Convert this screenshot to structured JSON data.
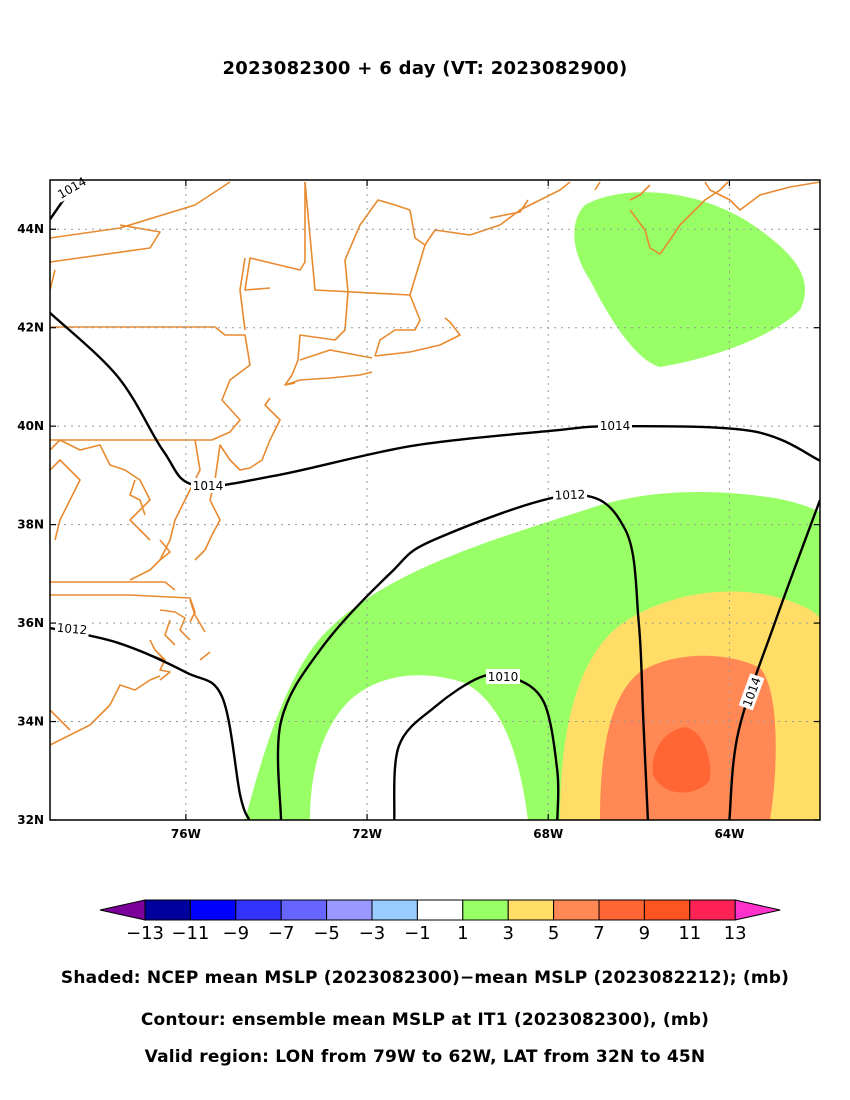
{
  "title": "2023082300 + 6 day (VT: 2023082900)",
  "captions": {
    "shaded": "Shaded: NCEP mean MSLP (2023082300)−mean MSLP (2023082212); (mb)",
    "contour": "Contour: ensemble mean MSLP at IT1 (2023082300), (mb)",
    "region": "Valid region: LON from 79W to 62W, LAT from 32N to 45N"
  },
  "chart_data": {
    "type": "heatmap",
    "projection": "lat-lon map",
    "x_range_deg_east": [
      -79,
      -62
    ],
    "y_range_deg_north": [
      32,
      45
    ],
    "x_ticks": [
      {
        "value": -76,
        "label": "76W"
      },
      {
        "value": -72,
        "label": "72W"
      },
      {
        "value": -68,
        "label": "68W"
      },
      {
        "value": -64,
        "label": "64W"
      }
    ],
    "y_ticks": [
      {
        "value": 32,
        "label": "32N"
      },
      {
        "value": 34,
        "label": "34N"
      },
      {
        "value": 36,
        "label": "36N"
      },
      {
        "value": 38,
        "label": "38N"
      },
      {
        "value": 40,
        "label": "40N"
      },
      {
        "value": 42,
        "label": "42N"
      },
      {
        "value": 44,
        "label": "44N"
      }
    ],
    "grid": true,
    "coastline_color": "#e88a30",
    "colorbar": {
      "levels": [
        "−13",
        "−11",
        "−9",
        "−7",
        "−5",
        "−3",
        "−1",
        "1",
        "3",
        "5",
        "7",
        "9",
        "11",
        "13"
      ],
      "colors": [
        "#7a0099",
        "#00009e",
        "#0000ff",
        "#3333ff",
        "#6666ff",
        "#9999ff",
        "#99ccff",
        "#ffffff",
        "#99ff66",
        "#ffdd66",
        "#ff8855",
        "#ff6633",
        "#ff5522",
        "#ff2255",
        "#ff33cc"
      ]
    },
    "shaded_regions": [
      {
        "value_range": "1 to 3",
        "color": "#99ff66",
        "area": "northeast, around 42-45N 63-66W"
      },
      {
        "value_range": "1 to 3",
        "color": "#99ff66",
        "area": "arc from 32N 74W to 38N 63W"
      },
      {
        "value_range": "3 to 5",
        "color": "#ffdd66",
        "area": "32-37N 62-67W"
      },
      {
        "value_range": "5 to 7",
        "color": "#ff8855",
        "area": "32-35.5N 63-66W"
      },
      {
        "value_range": "7 to 9",
        "color": "#ff6633",
        "area": "around 33N 65W"
      }
    ],
    "contours": [
      {
        "level": 1014,
        "label": "1014",
        "path": [
          [
            -79,
            42.3
          ],
          [
            -77.5,
            41
          ],
          [
            -76.5,
            39.5
          ],
          [
            -75.8,
            38.8
          ],
          [
            -74,
            39
          ],
          [
            -71,
            39.6
          ],
          [
            -68,
            39.9
          ],
          [
            -66.5,
            40
          ],
          [
            -63.5,
            39.9
          ],
          [
            -62,
            39.3
          ]
        ]
      },
      {
        "level": 1014,
        "label": "1014",
        "path": [
          [
            -79,
            44.2
          ],
          [
            -78.4,
            45
          ]
        ]
      },
      {
        "level": 1014,
        "label": "1014",
        "path": [
          [
            -64,
            32
          ],
          [
            -63.8,
            33.8
          ],
          [
            -63,
            36
          ],
          [
            -62,
            38.5
          ]
        ]
      },
      {
        "level": 1012,
        "label": "1012",
        "path": [
          [
            -79,
            35.9
          ],
          [
            -77.5,
            35.6
          ],
          [
            -76,
            35
          ],
          [
            -75.2,
            34.5
          ],
          [
            -74.8,
            32.5
          ],
          [
            -74.6,
            32
          ]
        ]
      },
      {
        "level": 1012,
        "label": "1012",
        "path": [
          [
            -73.9,
            32
          ],
          [
            -73.9,
            34
          ],
          [
            -73,
            35.5
          ],
          [
            -71.5,
            37
          ],
          [
            -70.5,
            37.7
          ],
          [
            -67.5,
            38.6
          ],
          [
            -66.3,
            37.9
          ],
          [
            -66,
            36
          ],
          [
            -65.9,
            34
          ],
          [
            -65.8,
            32
          ]
        ]
      },
      {
        "level": 1010,
        "label": "1010",
        "path": [
          [
            -71.4,
            32
          ],
          [
            -71.3,
            33.5
          ],
          [
            -70.5,
            34.3
          ],
          [
            -69.5,
            34.9
          ],
          [
            -68.8,
            34.9
          ],
          [
            -68.1,
            34.4
          ],
          [
            -67.8,
            33
          ],
          [
            -67.8,
            32
          ]
        ]
      }
    ]
  }
}
